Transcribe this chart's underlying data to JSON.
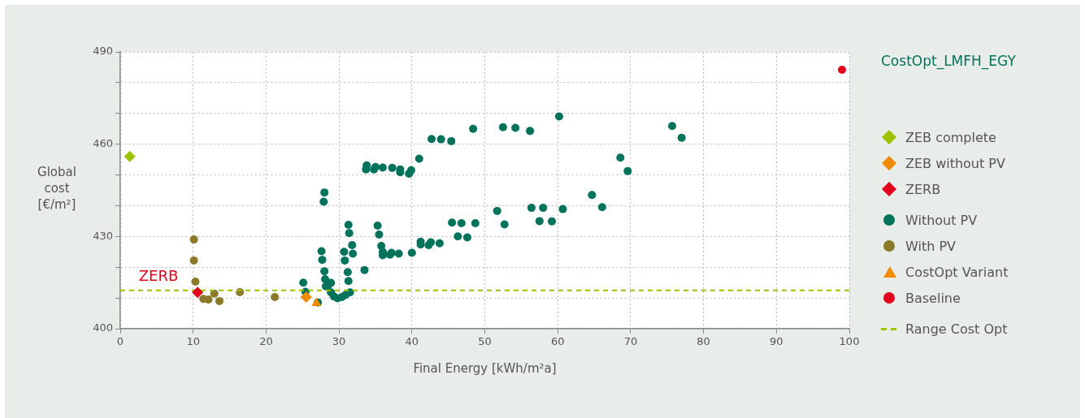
{
  "chart_data": {
    "type": "scatter",
    "xlabel": "Final Energy [kWh/m²a]",
    "ylabel": "Global cost [€/m²]",
    "legend_title": "CostOpt_LMFH_EGY",
    "legend": "right",
    "grid": true,
    "xlim": [
      0,
      100
    ],
    "xticks": [
      0,
      10,
      20,
      30,
      40,
      50,
      60,
      70,
      80,
      90,
      100
    ],
    "ylim": [
      400,
      490
    ],
    "yticks": [
      400,
      {
        "value": 410,
        "label": null
      },
      {
        "value": 420,
        "label": null
      },
      430,
      {
        "value": 440,
        "label": null
      },
      {
        "value": 450,
        "label": null
      },
      460,
      {
        "value": 470,
        "label": null
      },
      {
        "value": 480,
        "label": null
      },
      490
    ],
    "annotations": [
      "ZERB"
    ],
    "series": [
      {
        "name": "ZEB complete",
        "marker": "diamond",
        "color": "#9dc200",
        "x": [
          1.3
        ],
        "values": [
          456.0
        ]
      },
      {
        "name": "ZEB without PV",
        "marker": "diamond",
        "color": "#f08a00",
        "x": [
          25.5
        ],
        "values": [
          410.3
        ]
      },
      {
        "name": "ZERB",
        "marker": "diamond",
        "color": "#e2001a",
        "x": [
          10.6
        ],
        "values": [
          411.8
        ]
      },
      {
        "name": "Without PV",
        "marker": "circle",
        "color": "#00735a",
        "x": [
          25.1,
          25.4,
          27.1,
          27.6,
          27.7,
          28.0,
          28.1,
          28.9,
          28.5,
          28.2,
          28.9,
          29.3,
          29.8,
          30.4,
          30.9,
          31.5,
          31.3,
          30.7,
          31.8,
          30.8,
          31.9,
          31.2,
          31.3,
          33.5,
          28.0,
          27.9,
          33.8,
          33.7,
          34.8,
          35.0,
          36.0,
          37.3,
          38.4,
          38.4,
          39.6,
          39.9,
          41.0,
          42.7,
          44.0,
          45.4,
          48.4,
          52.5,
          54.2,
          31.4,
          35.3,
          35.5,
          35.8,
          36.0,
          36.0,
          37.0,
          37.2,
          38.2,
          40.0,
          41.2,
          41.2,
          42.3,
          42.6,
          43.8,
          45.5,
          46.8,
          48.7,
          46.3,
          47.6,
          51.7,
          52.7,
          56.2,
          60.2,
          75.7,
          77.0,
          68.6,
          69.6,
          64.7,
          66.1,
          56.4,
          58.0,
          60.7,
          57.5,
          59.2
        ],
        "values": [
          415.0,
          412.0,
          408.5,
          425.2,
          422.4,
          418.7,
          416.1,
          414.9,
          414.0,
          413.8,
          411.8,
          410.5,
          409.9,
          410.3,
          411.0,
          411.8,
          433.8,
          425.0,
          427.2,
          422.2,
          424.4,
          418.4,
          415.5,
          419.1,
          444.3,
          441.3,
          453.1,
          451.8,
          451.8,
          452.6,
          452.4,
          452.3,
          451.8,
          450.9,
          450.4,
          451.5,
          455.3,
          461.7,
          461.6,
          461.0,
          465.0,
          465.5,
          465.3,
          431.1,
          433.5,
          430.6,
          426.9,
          425.0,
          423.9,
          424.1,
          424.7,
          424.4,
          424.7,
          428.3,
          427.4,
          427.2,
          428.1,
          427.8,
          434.5,
          434.3,
          434.3,
          430.0,
          429.7,
          438.3,
          433.9,
          464.3,
          469.0,
          465.9,
          462.1,
          455.6,
          451.3,
          443.5,
          439.5,
          439.3,
          439.3,
          438.9,
          435.0,
          434.9
        ]
      },
      {
        "name": "With PV",
        "marker": "circle",
        "color": "#8a7a2a",
        "x": [
          10.1,
          10.1,
          10.3,
          11.0,
          11.4,
          12.1,
          12.9,
          13.6,
          16.4,
          21.2
        ],
        "values": [
          429.0,
          422.2,
          415.3,
          null,
          409.7,
          409.5,
          411.4,
          409.0,
          411.9,
          410.3
        ]
      },
      {
        "name": "CostOpt Variant",
        "marker": "triangle",
        "color": "#f08a00",
        "x": [
          26.9
        ],
        "values": [
          408.3
        ]
      },
      {
        "name": "Baseline",
        "marker": "circle",
        "color": "#e2001a",
        "x": [
          99.0
        ],
        "values": [
          484.2
        ]
      },
      {
        "name": "Range Cost Opt",
        "type": "line",
        "marker": "none",
        "line_style": "dashed",
        "color": "#9dc200",
        "x": [
          0,
          100
        ],
        "values": [
          412.5,
          412.5
        ]
      }
    ]
  }
}
